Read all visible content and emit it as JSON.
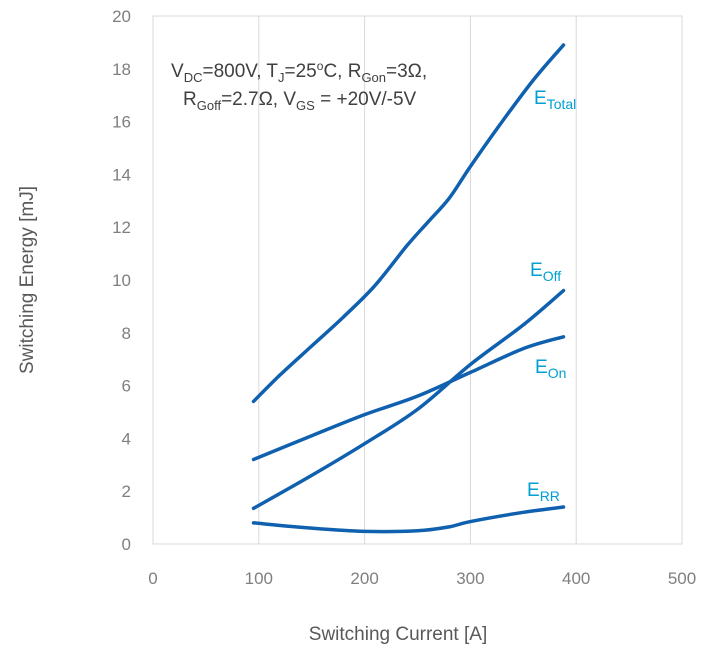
{
  "chart_data": {
    "type": "line",
    "xlabel": "Switching Current [A]",
    "ylabel": "Switching Energy [mJ]",
    "xlim": [
      0,
      500
    ],
    "ylim": [
      0,
      20
    ],
    "x_ticks": [
      "0",
      "100",
      "200",
      "300",
      "400",
      "500"
    ],
    "y_ticks": [
      "0",
      "2",
      "4",
      "6",
      "8",
      "10",
      "12",
      "14",
      "16",
      "18",
      "20"
    ],
    "grid": "vertical",
    "line_color": "#1060b0",
    "label_color": "#00a0d2",
    "conditions": {
      "line1": {
        "v_dc": "V",
        "v_dc_sub": "DC",
        "v_dc_val": "=800V, T",
        "tj_sub": "J",
        "tj_val": "=25",
        "deg": "o",
        "tj_unit": "C, R",
        "rgon_sub": "Gon",
        "rgon_val": "=3Ω,"
      },
      "line2": {
        "r": "R",
        "rgoff_sub": "Goff",
        "rgoff_val": "=2.7Ω, V",
        "vgs_sub": "GS",
        "vgs_val": " = +20V/-5V"
      }
    },
    "series": [
      {
        "name": "E",
        "sub": "Total",
        "x": [
          95,
          120,
          150,
          180,
          210,
          240,
          260,
          280,
          300,
          330,
          360,
          388
        ],
        "y": [
          5.4,
          6.4,
          7.5,
          8.6,
          9.8,
          11.3,
          12.2,
          13.1,
          14.3,
          16.0,
          17.6,
          18.9
        ]
      },
      {
        "name": "E",
        "sub": "Off",
        "x": [
          95,
          150,
          200,
          250,
          300,
          350,
          388
        ],
        "y": [
          1.35,
          2.6,
          3.8,
          5.1,
          6.8,
          8.3,
          9.6
        ]
      },
      {
        "name": "E",
        "sub": "On",
        "x": [
          95,
          150,
          200,
          250,
          300,
          350,
          388
        ],
        "y": [
          3.2,
          4.1,
          4.9,
          5.6,
          6.5,
          7.4,
          7.85
        ]
      },
      {
        "name": "E",
        "sub": "RR",
        "x": [
          95,
          150,
          200,
          250,
          280,
          300,
          350,
          388
        ],
        "y": [
          0.8,
          0.6,
          0.48,
          0.5,
          0.65,
          0.85,
          1.2,
          1.4
        ]
      }
    ]
  }
}
